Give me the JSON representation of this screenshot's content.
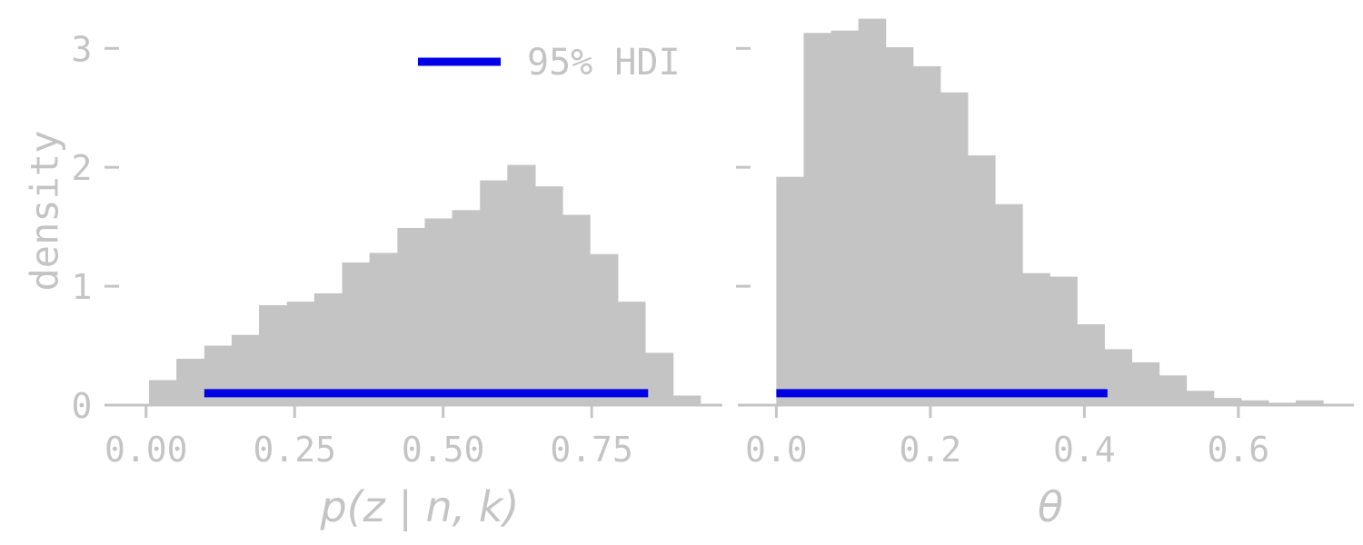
{
  "chart_data": [
    {
      "type": "bar",
      "subtype": "histogram",
      "xlabel": "p(z | n, k)",
      "ylabel": "density",
      "xlim": [
        -0.07,
        0.97
      ],
      "ylim": [
        0,
        3.3
      ],
      "x_ticks": [
        0.0,
        0.25,
        0.5,
        0.75
      ],
      "x_tick_labels": [
        "0.00",
        "0.25",
        "0.50",
        "0.75"
      ],
      "y_ticks": [
        0,
        1,
        2,
        3
      ],
      "y_tick_labels": [
        "0",
        "1",
        "2",
        "3"
      ],
      "bin_edges": [
        0.005,
        0.051,
        0.098,
        0.144,
        0.19,
        0.237,
        0.283,
        0.33,
        0.376,
        0.423,
        0.469,
        0.515,
        0.562,
        0.608,
        0.655,
        0.701,
        0.747,
        0.794,
        0.84,
        0.887,
        0.933
      ],
      "values": [
        0.21,
        0.39,
        0.5,
        0.59,
        0.84,
        0.87,
        0.94,
        1.2,
        1.28,
        1.49,
        1.57,
        1.64,
        1.89,
        2.02,
        1.84,
        1.6,
        1.27,
        0.87,
        0.44,
        0.08
      ],
      "hdi": {
        "name": "95% HDI",
        "lower": 0.098,
        "upper": 0.845,
        "y": 0.1,
        "color": "#0000e6"
      },
      "legend": {
        "label": "95% HDI",
        "placement": "top-right"
      },
      "bar_color": "#c4c4c4"
    },
    {
      "type": "bar",
      "subtype": "histogram",
      "xlabel": "θ",
      "ylabel": "",
      "xlim": [
        -0.05,
        0.75
      ],
      "ylim": [
        0,
        3.3
      ],
      "x_ticks": [
        0.0,
        0.2,
        0.4,
        0.6
      ],
      "x_tick_labels": [
        "0.0",
        "0.2",
        "0.4",
        "0.6"
      ],
      "y_ticks": [
        0,
        1,
        2,
        3
      ],
      "y_tick_labels": [
        "",
        "",
        "",
        ""
      ],
      "bin_edges": [
        0.0,
        0.0355,
        0.071,
        0.1065,
        0.142,
        0.1775,
        0.213,
        0.2485,
        0.284,
        0.3195,
        0.355,
        0.3905,
        0.426,
        0.4615,
        0.497,
        0.5325,
        0.568,
        0.6035,
        0.639,
        0.6745,
        0.71
      ],
      "values": [
        1.92,
        3.13,
        3.15,
        3.25,
        3.01,
        2.85,
        2.63,
        2.1,
        1.69,
        1.11,
        1.08,
        0.68,
        0.47,
        0.36,
        0.25,
        0.12,
        0.06,
        0.04,
        0.02,
        0.04
      ],
      "hdi": {
        "name": "95% HDI",
        "lower": 0.0,
        "upper": 0.43,
        "y": 0.1,
        "color": "#0000e6"
      },
      "bar_color": "#c4c4c4"
    }
  ]
}
